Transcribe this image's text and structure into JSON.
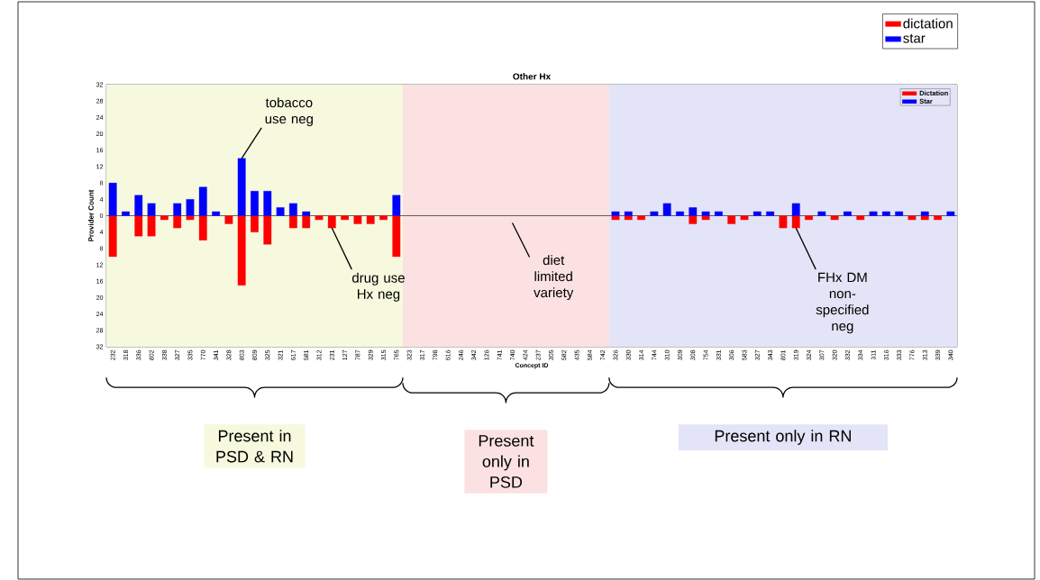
{
  "chart_data": {
    "type": "bar",
    "title": "Other Hx",
    "xlabel": "Concept ID",
    "ylabel": "Provider Count",
    "categories": [
      "232",
      "318",
      "336",
      "802",
      "338",
      "327",
      "335",
      "770",
      "341",
      "328",
      "803",
      "809",
      "325",
      "321",
      "617",
      "581",
      "312",
      "231",
      "127",
      "787",
      "329",
      "315",
      "765",
      "323",
      "317",
      "798",
      "616",
      "246",
      "342",
      "126",
      "741",
      "740",
      "424",
      "237",
      "305",
      "582",
      "435",
      "584",
      "742",
      "326",
      "330",
      "314",
      "744",
      "310",
      "309",
      "308",
      "754",
      "331",
      "306",
      "583",
      "327",
      "343",
      "801",
      "319",
      "324",
      "307",
      "320",
      "332",
      "334",
      "311",
      "316",
      "333",
      "776",
      "313",
      "339",
      "340"
    ],
    "series": [
      {
        "name": "dictation",
        "color": "#ff0000",
        "values": [
          -10,
          0,
          -5,
          -5,
          -1,
          -3,
          -1,
          -6,
          0,
          -2,
          -17,
          -4,
          -7,
          0,
          -3,
          -3,
          -1,
          -3,
          -1,
          -2,
          -2,
          -1,
          -10,
          0,
          0,
          0,
          0,
          0,
          0,
          0,
          0,
          0,
          0,
          0,
          0,
          0,
          0,
          0,
          0,
          -1,
          -1,
          -1,
          0,
          0,
          0,
          -2,
          -1,
          0,
          -2,
          -1,
          0,
          0,
          -3,
          -3,
          -1,
          0,
          -1,
          0,
          -1,
          0,
          0,
          0,
          -1,
          -1,
          -1,
          0
        ]
      },
      {
        "name": "star",
        "color": "#0000ff",
        "values": [
          8,
          1,
          5,
          3,
          0,
          3,
          4,
          7,
          1,
          0,
          14,
          6,
          6,
          2,
          3,
          1,
          0,
          0,
          0,
          0,
          0,
          0,
          5,
          0,
          0,
          0,
          0,
          0,
          0,
          0,
          0,
          0,
          0,
          0,
          0,
          0,
          0,
          0,
          0,
          1,
          1,
          0,
          1,
          3,
          1,
          2,
          1,
          1,
          0,
          0,
          1,
          1,
          0,
          3,
          0,
          1,
          0,
          1,
          0,
          1,
          1,
          1,
          0,
          1,
          0,
          1
        ]
      }
    ],
    "ylim": [
      -32,
      32
    ],
    "yticks": [
      {
        "value": -32,
        "label": "32"
      },
      {
        "value": -28,
        "label": "28"
      },
      {
        "value": -24,
        "label": "24"
      },
      {
        "value": -20,
        "label": "20"
      },
      {
        "value": -16,
        "label": "16"
      },
      {
        "value": -12,
        "label": "12"
      },
      {
        "value": -8,
        "label": "8"
      },
      {
        "value": -4,
        "label": "4"
      },
      0,
      4,
      8,
      12,
      16,
      20,
      24,
      28,
      32
    ],
    "grid": true,
    "legend": "top right",
    "ref_lines": [
      {
        "axis": "y",
        "value": 0,
        "color": "#000000"
      }
    ],
    "bands": [
      {
        "axis": "x",
        "from": "232",
        "to": "765",
        "color": "#f6f9de"
      },
      {
        "axis": "x",
        "from": "323",
        "to": "742",
        "color": "#fbe1e1"
      },
      {
        "axis": "x",
        "from": "326",
        "to": "340",
        "color": "#e4e4f8"
      }
    ],
    "annotations": [
      {
        "text": "tobacco use neg",
        "x": "803",
        "y": 14
      },
      {
        "text": "drug use Hx neg",
        "x": "231",
        "y": -3
      },
      "diet limited variety",
      {
        "text": "FHx DM non-specified neg",
        "x": "319",
        "y": -3
      },
      "Dictation",
      "Star",
      "Present in PSD & RN",
      "Present only in PSD",
      "Present only in RN"
    ]
  }
}
